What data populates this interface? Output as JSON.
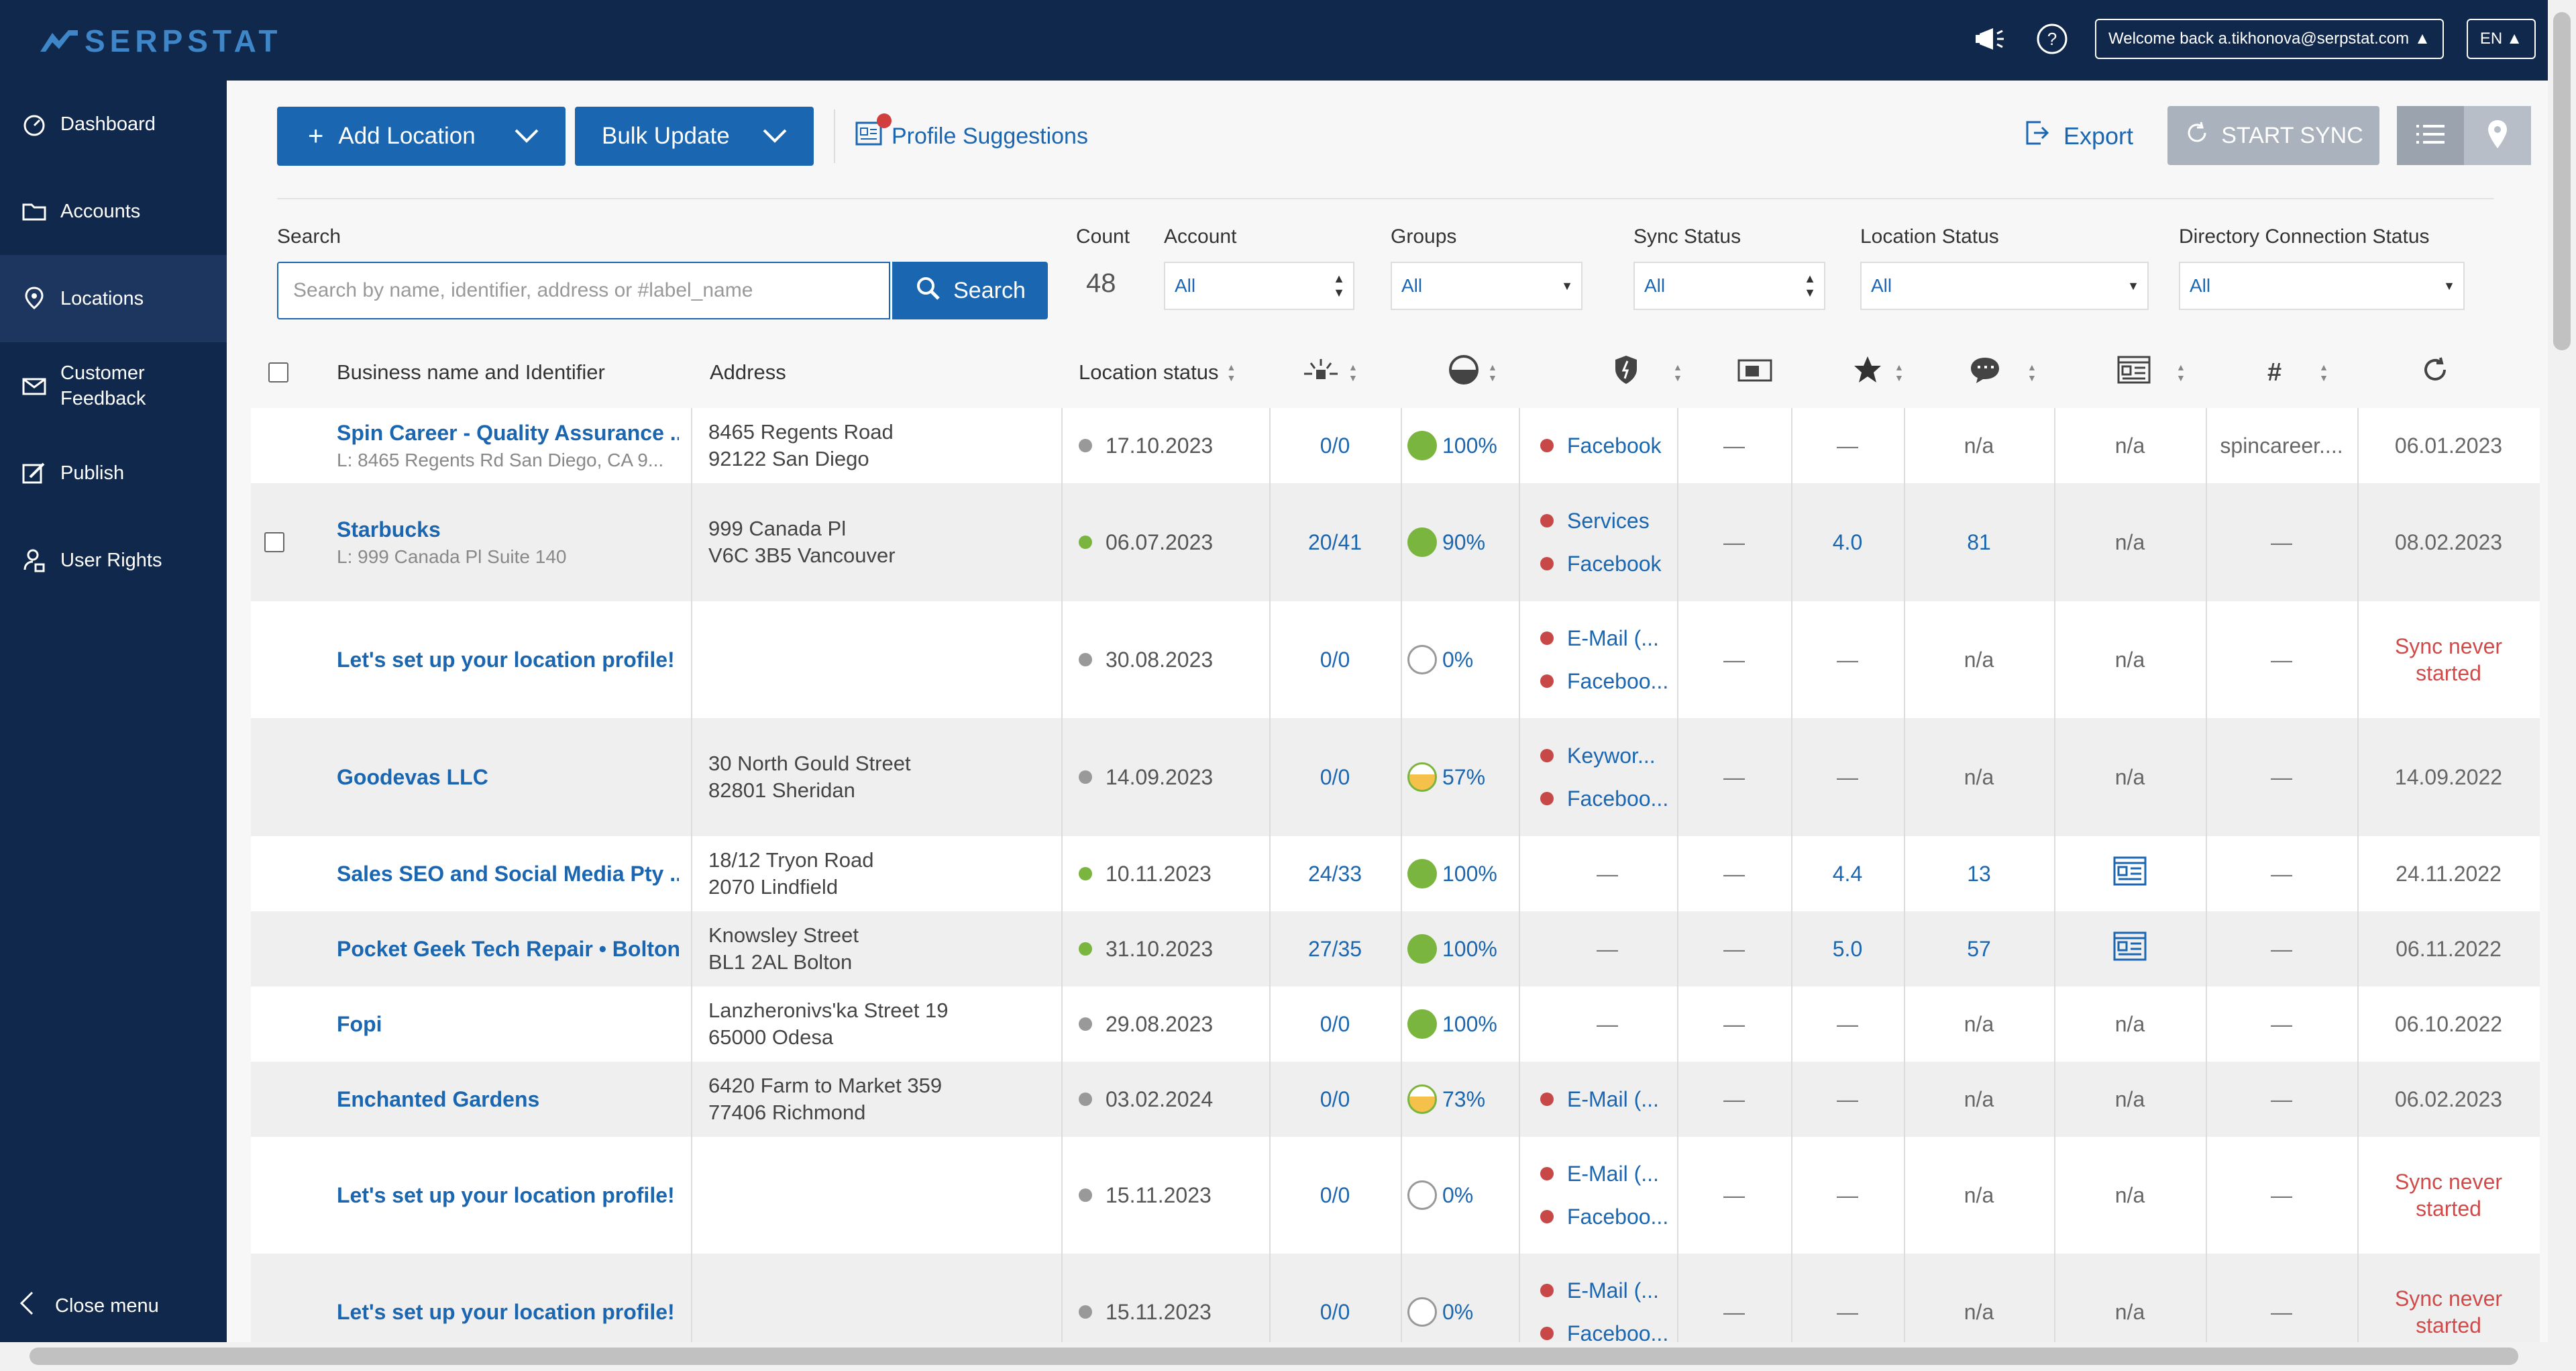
{
  "header": {
    "logo_text": "SERPSTAT",
    "welcome": "Welcome back  a.tikhonova@serpstat.com",
    "language": "EN"
  },
  "sidebar": {
    "items": [
      {
        "label": "Dashboard",
        "icon": "dashboard-icon"
      },
      {
        "label": "Accounts",
        "icon": "folder-icon"
      },
      {
        "label": "Locations",
        "icon": "location-pin-icon"
      },
      {
        "label": "Customer Feedback",
        "icon": "envelope-icon"
      },
      {
        "label": "Publish",
        "icon": "publish-icon"
      },
      {
        "label": "User Rights",
        "icon": "user-lock-icon"
      }
    ],
    "close_menu": "Close menu"
  },
  "toolbar": {
    "add_location": "Add Location",
    "bulk_update": "Bulk Update",
    "profile_suggestions": "Profile Suggestions",
    "export": "Export",
    "start_sync": "START SYNC"
  },
  "filters": {
    "search_label": "Search",
    "search_placeholder": "Search by name, identifier, address or #label_name",
    "search_button": "Search",
    "count_label": "Count",
    "count_value": "48",
    "account_label": "Account",
    "account_value": "All",
    "groups_label": "Groups",
    "groups_value": "All",
    "sync_status_label": "Sync Status",
    "sync_status_value": "All",
    "location_status_label": "Location Status",
    "location_status_value": "All",
    "directory_label": "Directory Connection Status",
    "directory_value": "All"
  },
  "table": {
    "headers": {
      "business": "Business name and Identifier",
      "address": "Address",
      "location_status": "Location status"
    },
    "rows": [
      {
        "name": "Spin Career - Quality Assurance ...",
        "sub": "L: 8465 Regents Rd San Diego, CA 9...",
        "addr1": "8465 Regents Road",
        "addr2": "92122 San Diego",
        "status_date": "17.10.2023",
        "status_color": "grey",
        "ratio": "0/0",
        "pct": "100%",
        "pct_kind": "full",
        "dirs": [
          "Facebook"
        ],
        "c7": "—",
        "rating": "—",
        "reviews": "n/a",
        "posts": "n/a",
        "hash": "spincareer....",
        "sync": "06.01.2023"
      },
      {
        "name": "Starbucks",
        "sub": "L: 999 Canada Pl Suite 140",
        "addr1": "999 Canada Pl",
        "addr2": "V6C 3B5 Vancouver",
        "status_date": "06.07.2023",
        "status_color": "green",
        "ratio": "20/41",
        "pct": "90%",
        "pct_kind": "full",
        "dirs": [
          "Services",
          "Facebook"
        ],
        "c7": "—",
        "rating": "4.0",
        "reviews": "81",
        "posts": "n/a",
        "hash": "—",
        "sync": "08.02.2023"
      },
      {
        "name": "Let's set up your location profile!",
        "sub": "",
        "addr1": "",
        "addr2": "",
        "status_date": "30.08.2023",
        "status_color": "grey",
        "ratio": "0/0",
        "pct": "0%",
        "pct_kind": "empty",
        "dirs": [
          "E-Mail (...",
          "Faceboo..."
        ],
        "c7": "—",
        "rating": "—",
        "reviews": "n/a",
        "posts": "n/a",
        "hash": "—",
        "sync": "Sync never started"
      },
      {
        "name": "Goodevas LLC",
        "sub": "",
        "addr1": "30 North Gould Street",
        "addr2": "82801 Sheridan",
        "status_date": "14.09.2023",
        "status_color": "grey",
        "ratio": "0/0",
        "pct": "57%",
        "pct_kind": "half",
        "dirs": [
          "Keywor...",
          "Faceboo..."
        ],
        "c7": "—",
        "rating": "—",
        "reviews": "n/a",
        "posts": "n/a",
        "hash": "—",
        "sync": "14.09.2022"
      },
      {
        "name": "Sales SEO and Social Media Pty ...",
        "sub": "",
        "addr1": "18/12 Tryon Road",
        "addr2": "2070 Lindfield",
        "status_date": "10.11.2023",
        "status_color": "green",
        "ratio": "24/33",
        "pct": "100%",
        "pct_kind": "full",
        "dirs": [],
        "c7": "—",
        "rating": "4.4",
        "reviews": "13",
        "posts": "icon",
        "hash": "—",
        "sync": "24.11.2022"
      },
      {
        "name": "Pocket Geek Tech Repair • Bolton",
        "sub": "",
        "addr1": "Knowsley Street",
        "addr2": "BL1 2AL Bolton",
        "status_date": "31.10.2023",
        "status_color": "green",
        "ratio": "27/35",
        "pct": "100%",
        "pct_kind": "full",
        "dirs": [],
        "c7": "—",
        "rating": "5.0",
        "reviews": "57",
        "posts": "icon",
        "hash": "—",
        "sync": "06.11.2022"
      },
      {
        "name": "Fopi",
        "sub": "",
        "addr1": "Lanzheronivs'ka Street 19",
        "addr2": "65000 Odesa",
        "status_date": "29.08.2023",
        "status_color": "grey",
        "ratio": "0/0",
        "pct": "100%",
        "pct_kind": "full",
        "dirs": [],
        "c7": "—",
        "rating": "—",
        "reviews": "n/a",
        "posts": "n/a",
        "hash": "—",
        "sync": "06.10.2022"
      },
      {
        "name": "Enchanted Gardens",
        "sub": "",
        "addr1": "6420 Farm to Market 359",
        "addr2": "77406 Richmond",
        "status_date": "03.02.2024",
        "status_color": "grey",
        "ratio": "0/0",
        "pct": "73%",
        "pct_kind": "half",
        "dirs": [
          "E-Mail (..."
        ],
        "c7": "—",
        "rating": "—",
        "reviews": "n/a",
        "posts": "n/a",
        "hash": "—",
        "sync": "06.02.2023"
      },
      {
        "name": "Let's set up your location profile!",
        "sub": "",
        "addr1": "",
        "addr2": "",
        "status_date": "15.11.2023",
        "status_color": "grey",
        "ratio": "0/0",
        "pct": "0%",
        "pct_kind": "empty",
        "dirs": [
          "E-Mail (...",
          "Faceboo..."
        ],
        "c7": "—",
        "rating": "—",
        "reviews": "n/a",
        "posts": "n/a",
        "hash": "—",
        "sync": "Sync never started"
      },
      {
        "name": "Let's set up your location profile!",
        "sub": "",
        "addr1": "",
        "addr2": "",
        "status_date": "15.11.2023",
        "status_color": "grey",
        "ratio": "0/0",
        "pct": "0%",
        "pct_kind": "empty",
        "dirs": [
          "E-Mail (...",
          "Faceboo..."
        ],
        "c7": "—",
        "rating": "—",
        "reviews": "n/a",
        "posts": "n/a",
        "hash": "—",
        "sync": "Sync never started"
      }
    ]
  }
}
